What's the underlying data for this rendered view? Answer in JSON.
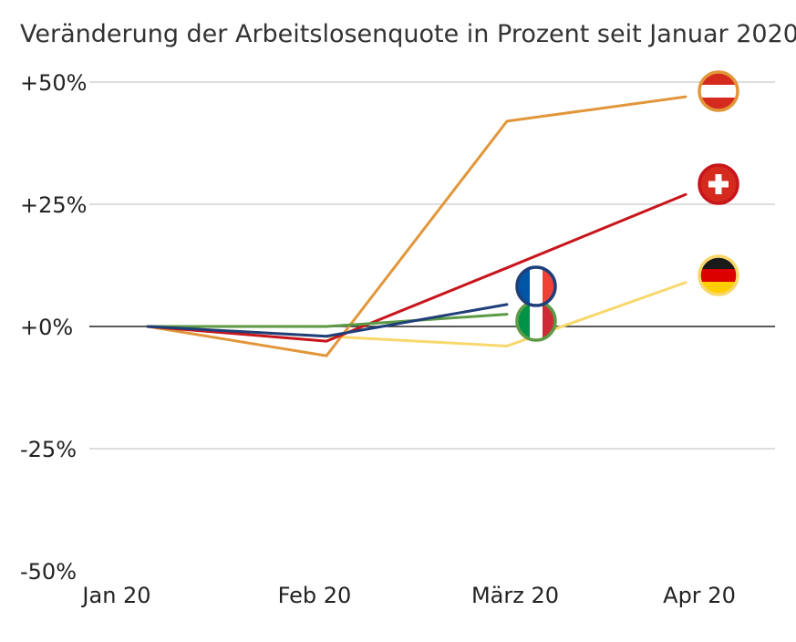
{
  "chart_data": {
    "type": "line",
    "title": "Veränderung der Arbeitslosenquote in Prozent seit Januar 2020",
    "xlabel": "",
    "ylabel": "",
    "categories": [
      "Jan 20",
      "Feb 20",
      "März 20",
      "Apr 20"
    ],
    "ylim": [
      -50,
      50
    ],
    "y_ticks": [
      50,
      25,
      0,
      -25,
      -50
    ],
    "y_tick_labels": [
      "+50%",
      "+25%",
      "+0%",
      "-25%",
      "-50%"
    ],
    "grid": true,
    "series": [
      {
        "flag": "austria",
        "color": "#E2963A",
        "values": [
          0,
          -6,
          42,
          47
        ]
      },
      {
        "flag": "switzerland",
        "color": "#C8151B",
        "values": [
          0,
          -3,
          12,
          27
        ]
      },
      {
        "flag": "germany",
        "color": "#F8D86C",
        "values": [
          0,
          -2,
          -4,
          9
        ]
      },
      {
        "flag": "france",
        "color": "#1F3F7A",
        "values": [
          0,
          -2,
          4.5,
          null
        ]
      },
      {
        "flag": "italy",
        "color": "#5C9A46",
        "values": [
          0,
          0,
          2.5,
          null
        ]
      }
    ]
  }
}
